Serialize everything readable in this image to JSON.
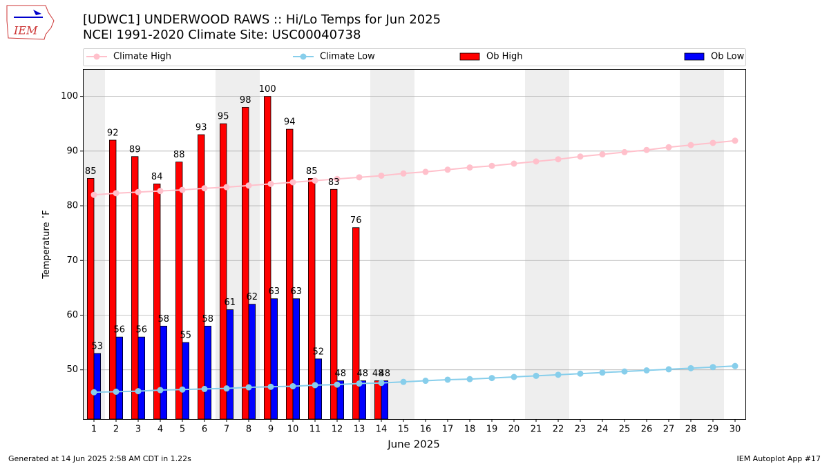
{
  "logo_text": "IEM",
  "footer": {
    "left": "Generated at 14 Jun 2025 2:58 AM CDT in 1.22s",
    "right": "IEM Autoplot App #17"
  },
  "chart_data": {
    "type": "bar",
    "title": "[UDWC1] UNDERWOOD RAWS :: Hi/Lo Temps for Jun 2025",
    "subtitle": "NCEI 1991-2020 Climate Site: USC00040738",
    "x_label": "June 2025",
    "y_label": "Temperature $^\\circ$F",
    "x": [
      1,
      2,
      3,
      4,
      5,
      6,
      7,
      8,
      9,
      10,
      11,
      12,
      13,
      14,
      15,
      16,
      17,
      18,
      19,
      20,
      21,
      22,
      23,
      24,
      25,
      26,
      27,
      28,
      29,
      30
    ],
    "xlim": [
      0.5,
      30.5
    ],
    "ylim": [
      41,
      105
    ],
    "yticks": [
      50,
      60,
      70,
      80,
      90,
      100
    ],
    "grid": true,
    "shaded_days": [
      1,
      7,
      8,
      14,
      15,
      21,
      22,
      28,
      29
    ],
    "series": [
      {
        "name": "Climate High",
        "type": "line",
        "color": "#ffc0cb",
        "values": [
          82.0,
          82.3,
          82.5,
          82.7,
          82.9,
          83.2,
          83.4,
          83.7,
          84.0,
          84.3,
          84.6,
          84.9,
          85.2,
          85.5,
          85.9,
          86.2,
          86.6,
          87.0,
          87.3,
          87.7,
          88.1,
          88.5,
          89.0,
          89.4,
          89.8,
          90.2,
          90.7,
          91.1,
          91.5,
          91.9
        ]
      },
      {
        "name": "Climate Low",
        "type": "line",
        "color": "#87ceeb",
        "values": [
          45.9,
          46.0,
          46.1,
          46.3,
          46.4,
          46.5,
          46.6,
          46.8,
          46.9,
          47.0,
          47.2,
          47.3,
          47.5,
          47.6,
          47.8,
          48.0,
          48.2,
          48.3,
          48.5,
          48.7,
          48.9,
          49.1,
          49.3,
          49.5,
          49.7,
          49.9,
          50.1,
          50.3,
          50.5,
          50.7
        ]
      },
      {
        "name": "Ob High",
        "type": "bar",
        "color": "#ff0000",
        "values": [
          85,
          92,
          89,
          84,
          88,
          93,
          95,
          98,
          100,
          94,
          85,
          83,
          76,
          48,
          null,
          null,
          null,
          null,
          null,
          null,
          null,
          null,
          null,
          null,
          null,
          null,
          null,
          null,
          null,
          null
        ]
      },
      {
        "name": "Ob Low",
        "type": "bar",
        "color": "#0000ff",
        "values": [
          53,
          56,
          56,
          58,
          55,
          58,
          61,
          62,
          63,
          63,
          52,
          48,
          48,
          48,
          null,
          null,
          null,
          null,
          null,
          null,
          null,
          null,
          null,
          null,
          null,
          null,
          null,
          null,
          null,
          null
        ]
      }
    ]
  }
}
